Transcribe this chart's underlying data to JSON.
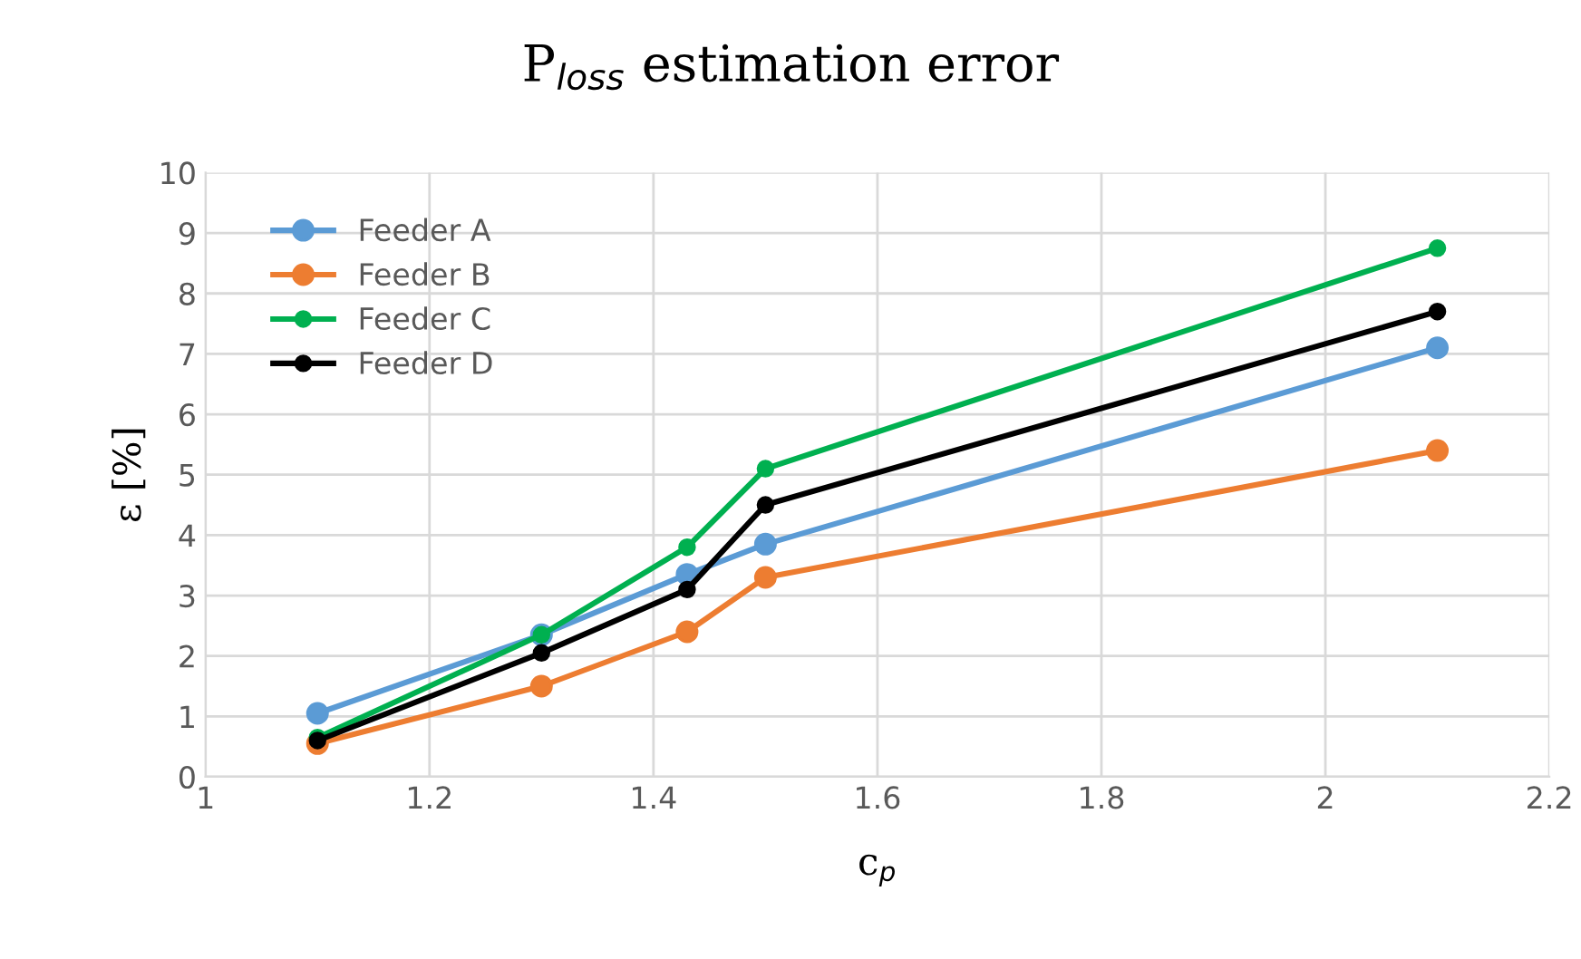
{
  "chart_data": {
    "type": "line",
    "title": "P$_{loss}$ estimation error",
    "xlabel": "c$_{p}$",
    "ylabel": "ε [%]",
    "x": [
      1.1,
      1.3,
      1.43,
      1.5,
      2.1
    ],
    "series": [
      {
        "name": "Feeder A",
        "color": "#5b9bd5",
        "values": [
          1.05,
          2.35,
          3.35,
          3.85,
          7.1
        ]
      },
      {
        "name": "Feeder B",
        "color": "#ed7d31",
        "values": [
          0.55,
          1.5,
          2.4,
          3.3,
          5.4
        ]
      },
      {
        "name": "Feeder C",
        "color": "#00b050",
        "values": [
          0.65,
          2.35,
          3.8,
          5.1,
          8.75
        ]
      },
      {
        "name": "Feeder D",
        "color": "#000000",
        "values": [
          0.6,
          2.05,
          3.1,
          4.5,
          7.7
        ]
      }
    ],
    "xlim": [
      1,
      2.2
    ],
    "xticks": [
      1,
      1.2,
      1.4,
      1.6,
      1.8,
      2,
      2.2
    ],
    "ylim": [
      0,
      10
    ],
    "yticks": [
      0,
      1,
      2,
      3,
      4,
      5,
      6,
      7,
      8,
      9,
      10
    ],
    "grid": true,
    "legend": "top left",
    "marker": "circle",
    "line_style": "solid"
  }
}
